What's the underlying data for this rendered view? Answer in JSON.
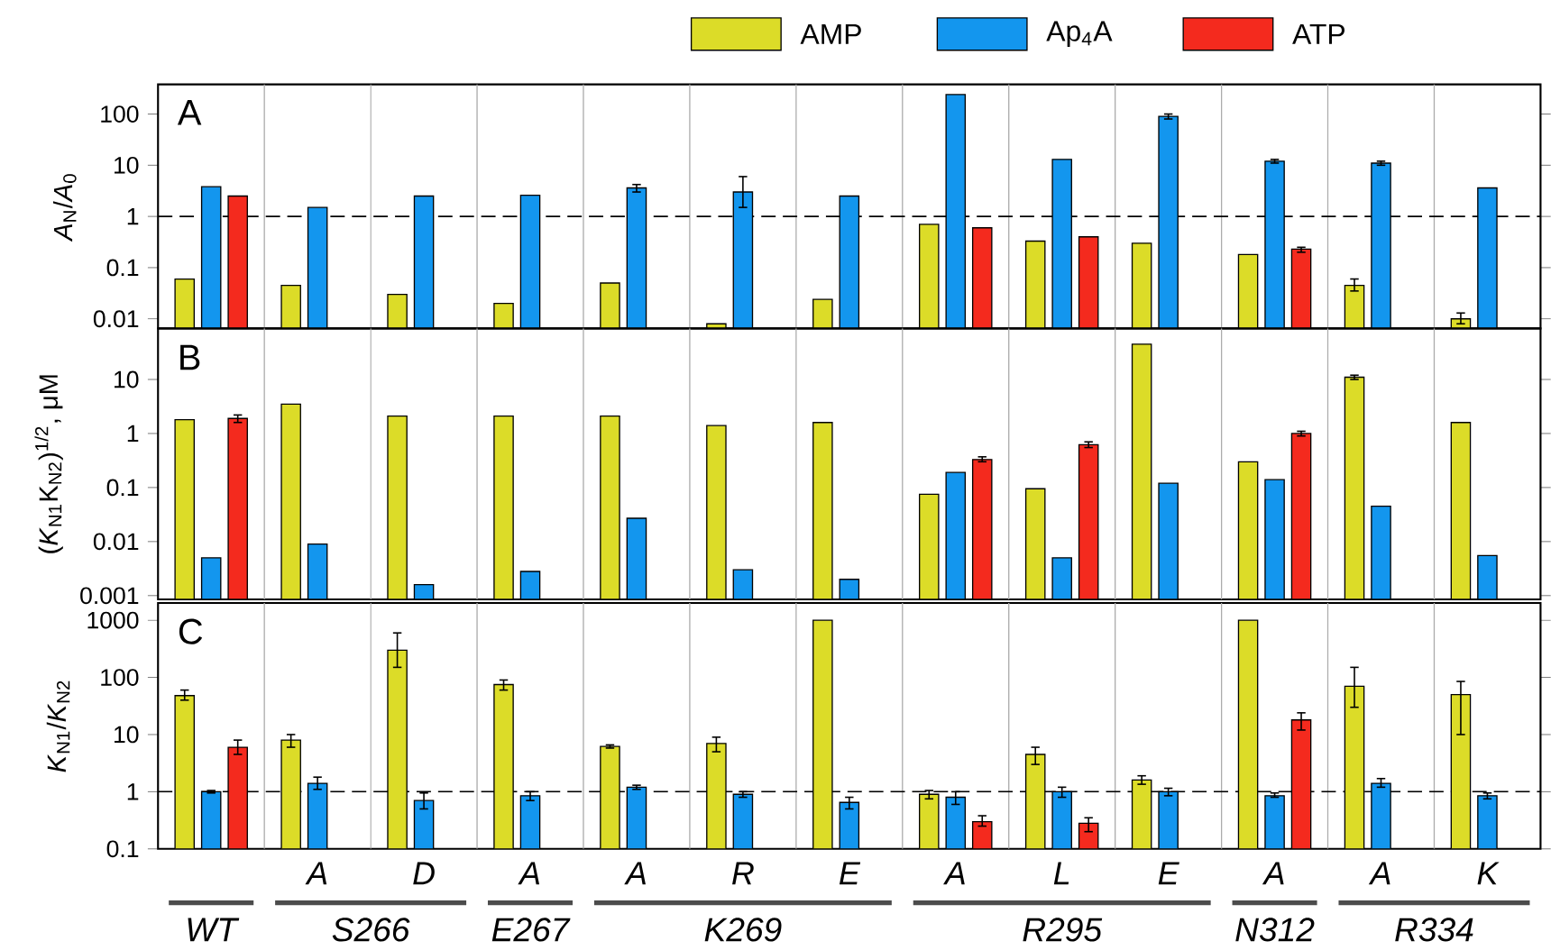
{
  "chart_data": [
    {
      "type": "bar",
      "title": "A",
      "ylabel": "*A*$_{N}$/*A*$_{0}$",
      "log": true,
      "legend": "top right",
      "tick_labels": "y",
      "grid": "x",
      "categories": [
        null,
        null,
        null,
        null,
        null,
        null,
        null,
        null,
        null,
        null,
        null,
        null,
        null
      ],
      "ylim": [
        0.0065,
        380
      ],
      "yticks": [
        0.01,
        0.1,
        1,
        10,
        100
      ],
      "ref_lines": [
        {
          "axis": "y",
          "value": 1,
          "line_style": "dashed"
        }
      ],
      "series": [
        {
          "name": "AMP",
          "color": "#dcdc28",
          "values": [
            0.06,
            0.045,
            0.03,
            0.02,
            0.05,
            0.008,
            0.024,
            0.7,
            0.33,
            0.3,
            0.18,
            0.045,
            0.01
          ],
          "errors": [
            null,
            null,
            null,
            null,
            null,
            null,
            null,
            null,
            null,
            null,
            null,
            [
              0.035,
              0.06
            ],
            [
              0.008,
              0.013
            ]
          ]
        },
        {
          "name": "Ap$_{4}$A",
          "color": "#1396ee",
          "values": [
            3.8,
            1.5,
            2.5,
            2.6,
            3.6,
            3.0,
            2.5,
            240,
            13,
            90,
            12,
            11,
            3.6
          ],
          "errors": [
            null,
            null,
            null,
            null,
            [
              3.0,
              4.2
            ],
            [
              1.5,
              6
            ],
            null,
            null,
            null,
            [
              80,
              100
            ],
            [
              11,
              13
            ],
            [
              10,
              12
            ],
            null
          ]
        },
        {
          "name": "ATP",
          "color": "#f42a1e",
          "values": [
            2.5,
            null,
            null,
            null,
            null,
            null,
            null,
            0.6,
            0.4,
            null,
            0.23,
            null,
            null
          ],
          "errors": [
            null,
            null,
            null,
            null,
            null,
            null,
            null,
            null,
            null,
            null,
            [
              0.2,
              0.25
            ],
            null,
            null
          ]
        }
      ]
    },
    {
      "type": "bar",
      "title": "B",
      "ylabel": "(*K*$_{N1}$K$_{N2}$)$^{1/2}$, μM",
      "log": true,
      "tick_labels": "y",
      "grid": "x",
      "categories": [
        null,
        null,
        null,
        null,
        null,
        null,
        null,
        null,
        null,
        null,
        null,
        null,
        null
      ],
      "ylim": [
        0.00085,
        88
      ],
      "yticks": [
        0.001,
        0.01,
        0.1,
        1,
        10
      ],
      "series": [
        {
          "color": "#dcdc28",
          "values": [
            1.8,
            3.5,
            2.1,
            2.1,
            2.1,
            1.4,
            1.6,
            0.075,
            0.095,
            45,
            0.3,
            11,
            1.6
          ],
          "errors": [
            null,
            null,
            null,
            null,
            null,
            null,
            null,
            null,
            null,
            null,
            null,
            [
              10,
              12
            ],
            null
          ]
        },
        {
          "color": "#1396ee",
          "values": [
            0.005,
            0.009,
            0.0016,
            0.0028,
            0.027,
            0.003,
            0.002,
            0.19,
            0.005,
            0.12,
            0.14,
            0.045,
            0.0055
          ]
        },
        {
          "color": "#f42a1e",
          "values": [
            1.9,
            null,
            null,
            null,
            null,
            null,
            null,
            0.33,
            0.62,
            null,
            1.0,
            null,
            null
          ],
          "errors": [
            [
              1.6,
              2.2
            ],
            null,
            null,
            null,
            null,
            null,
            null,
            [
              0.3,
              0.37
            ],
            [
              0.55,
              0.7
            ],
            null,
            [
              0.9,
              1.1
            ],
            null,
            null
          ]
        }
      ]
    },
    {
      "type": "bar",
      "title": "C",
      "ylabel": "*K*$_{N1}$/*K*$_{N2}$",
      "log": true,
      "grid": "x",
      "categories": [
        null,
        "A",
        "D",
        "A",
        "A",
        "R",
        "E",
        "A",
        "L",
        "E",
        "A",
        "A",
        "K"
      ],
      "ylim": [
        0.1,
        2000
      ],
      "yticks": [
        0.1,
        1,
        10,
        100,
        1000
      ],
      "ref_lines": [
        {
          "axis": "y",
          "value": 1,
          "line_style": "dashed"
        }
      ],
      "annotations": [
        "WT",
        "S266",
        "E267",
        "K269",
        "R295",
        "N312",
        "R334"
      ],
      "series": [
        {
          "color": "#dcdc28",
          "values": [
            48,
            8,
            300,
            75,
            6.2,
            7,
            1000,
            0.9,
            4.5,
            1.6,
            1000,
            70,
            50
          ],
          "errors": [
            [
              40,
              60
            ],
            [
              6,
              10
            ],
            [
              150,
              600
            ],
            [
              60,
              90
            ],
            [
              5.8,
              6.6
            ],
            [
              5,
              9
            ],
            null,
            [
              0.75,
              1.05
            ],
            [
              3,
              6
            ],
            [
              1.35,
              1.9
            ],
            null,
            [
              30,
              150
            ],
            [
              10,
              85
            ]
          ]
        },
        {
          "color": "#1396ee",
          "values": [
            1.0,
            1.4,
            0.7,
            0.85,
            1.2,
            0.9,
            0.65,
            0.8,
            1.0,
            1.0,
            0.85,
            1.4,
            0.85
          ],
          "errors": [
            [
              0.95,
              1.05
            ],
            [
              1.1,
              1.8
            ],
            [
              0.5,
              0.95
            ],
            [
              0.7,
              1.0
            ],
            [
              1.1,
              1.3
            ],
            [
              0.8,
              1.0
            ],
            [
              0.5,
              0.8
            ],
            [
              0.6,
              1.0
            ],
            [
              0.8,
              1.2
            ],
            [
              0.85,
              1.15
            ],
            [
              0.8,
              0.95
            ],
            [
              1.2,
              1.7
            ],
            [
              0.75,
              0.95
            ]
          ]
        },
        {
          "color": "#f42a1e",
          "values": [
            6,
            null,
            null,
            null,
            null,
            null,
            null,
            0.3,
            0.28,
            null,
            18,
            null,
            null
          ],
          "errors": [
            [
              4.5,
              8
            ],
            null,
            null,
            null,
            null,
            null,
            null,
            [
              0.25,
              0.38
            ],
            [
              0.2,
              0.35
            ],
            null,
            [
              12,
              24
            ],
            null,
            null
          ]
        }
      ]
    }
  ]
}
